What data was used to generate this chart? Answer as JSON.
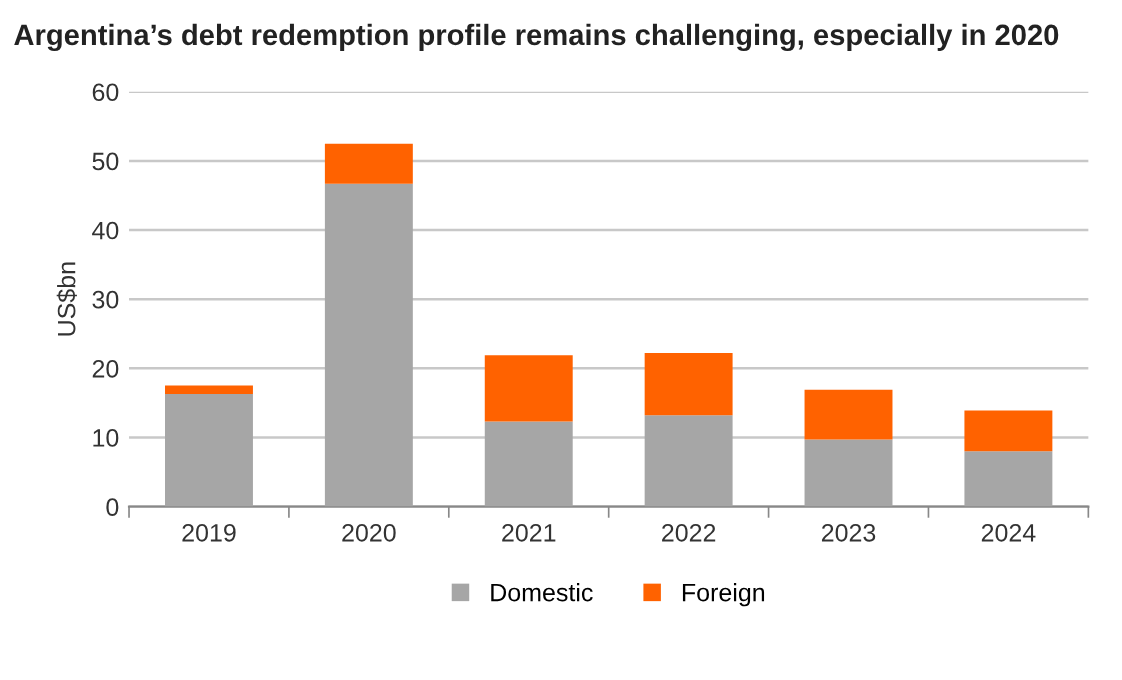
{
  "chart_data": {
    "type": "bar",
    "title": "Argentina’s debt redemption profile remains challenging, especially in 2020",
    "ylabel": "US$bn",
    "categories": [
      "2019",
      "2020",
      "2021",
      "2022",
      "2023",
      "2024"
    ],
    "series": [
      {
        "name": "Domestic",
        "color": "#a6a6a6",
        "values": [
          16.3,
          46.7,
          12.3,
          13.2,
          9.7,
          8.0
        ]
      },
      {
        "name": "Foreign",
        "color": "#ff6200",
        "values": [
          1.2,
          5.8,
          9.6,
          9.0,
          7.2,
          5.9
        ]
      }
    ],
    "stacked": true,
    "ylim": [
      0,
      60
    ],
    "yticks": [
      0,
      10,
      20,
      30,
      40,
      50,
      60
    ],
    "grid": "y",
    "legend": "bottom"
  }
}
